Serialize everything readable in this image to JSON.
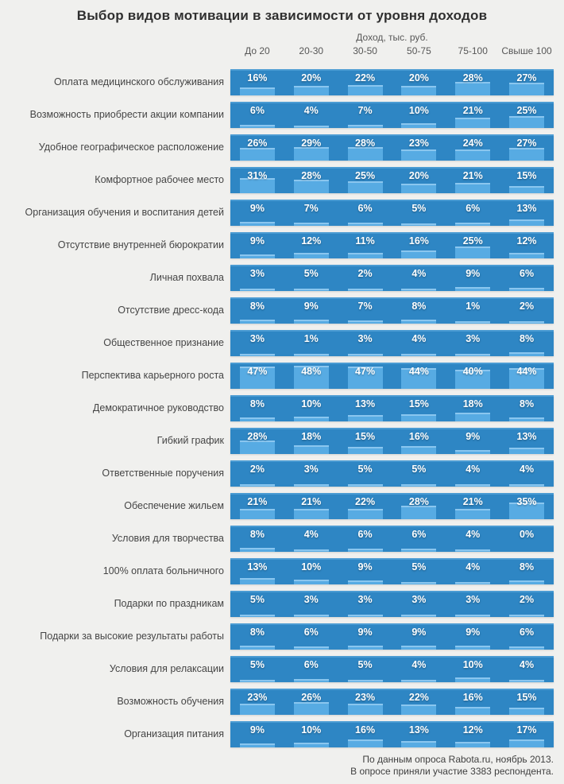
{
  "chart_data": {
    "type": "heatmap",
    "title": "Выбор видов мотивации в зависимости  от уровня доходов",
    "column_group_label": "Доход, тыс. руб.",
    "columns": [
      "До 20",
      "20-30",
      "30-50",
      "50-75",
      "75-100",
      "Свыше 100"
    ],
    "unit": "%",
    "value_display": "percent-label with mini bar, bar height proportional to value",
    "bar_scale_max": 55,
    "rows": [
      {
        "label": "Оплата медицинского обслуживания",
        "values": [
          16,
          20,
          22,
          20,
          28,
          27
        ]
      },
      {
        "label": "Возможность приобрести акции компании",
        "values": [
          6,
          4,
          7,
          10,
          21,
          25
        ]
      },
      {
        "label": "Удобное географическое расположение",
        "values": [
          26,
          29,
          28,
          23,
          24,
          27
        ]
      },
      {
        "label": "Комфортное рабочее место",
        "values": [
          31,
          28,
          25,
          20,
          21,
          15
        ]
      },
      {
        "label": "Организация обучения и воспитания детей",
        "values": [
          9,
          7,
          6,
          5,
          6,
          13
        ]
      },
      {
        "label": "Отсутствие внутренней бюрократии",
        "values": [
          9,
          12,
          11,
          16,
          25,
          12
        ]
      },
      {
        "label": "Личная похвала",
        "values": [
          3,
          5,
          2,
          4,
          9,
          6
        ]
      },
      {
        "label": "Отсутствие дресс-кода",
        "values": [
          8,
          9,
          7,
          8,
          1,
          2
        ]
      },
      {
        "label": "Общественное признание",
        "values": [
          3,
          1,
          3,
          4,
          3,
          8
        ]
      },
      {
        "label": "Перспектива карьерного роста",
        "values": [
          47,
          48,
          47,
          44,
          40,
          44
        ]
      },
      {
        "label": "Демократичное руководство",
        "values": [
          8,
          10,
          13,
          15,
          18,
          8
        ]
      },
      {
        "label": "Гибкий график",
        "values": [
          28,
          18,
          15,
          16,
          9,
          13
        ]
      },
      {
        "label": "Ответственные поручения",
        "values": [
          2,
          3,
          5,
          5,
          4,
          4
        ]
      },
      {
        "label": "Обеспечение жильем",
        "values": [
          21,
          21,
          22,
          28,
          21,
          35
        ]
      },
      {
        "label": "Условия для творчества",
        "values": [
          8,
          4,
          6,
          6,
          4,
          0
        ]
      },
      {
        "label": "100% оплата больничного",
        "values": [
          13,
          10,
          9,
          5,
          4,
          8
        ]
      },
      {
        "label": "Подарки по праздникам",
        "values": [
          5,
          3,
          3,
          3,
          3,
          2
        ]
      },
      {
        "label": "Подарки за высокие результаты работы",
        "values": [
          8,
          6,
          9,
          9,
          9,
          6
        ]
      },
      {
        "label": "Условия для релаксации",
        "values": [
          5,
          6,
          5,
          4,
          10,
          4
        ]
      },
      {
        "label": "Возможность обучения",
        "values": [
          23,
          26,
          23,
          22,
          16,
          15
        ]
      },
      {
        "label": "Организация питания",
        "values": [
          9,
          10,
          16,
          13,
          12,
          17
        ]
      }
    ],
    "footer_lines": [
      "По данным опроса Rabota.ru, ноябрь 2013.",
      "В опросе приняли участие 3383 респондента."
    ],
    "colors": {
      "background": "#f0f0ee",
      "band": "#2e86c4",
      "band_top_highlight": "#4a9bd3",
      "bar": "#57abe3",
      "bar_top_highlight": "#8ac6ef",
      "value_text": "#ffffff",
      "label_text": "#454545",
      "header_text": "#575757",
      "title_text": "#2f2f2f"
    },
    "legend_position": "none",
    "grid": false
  }
}
